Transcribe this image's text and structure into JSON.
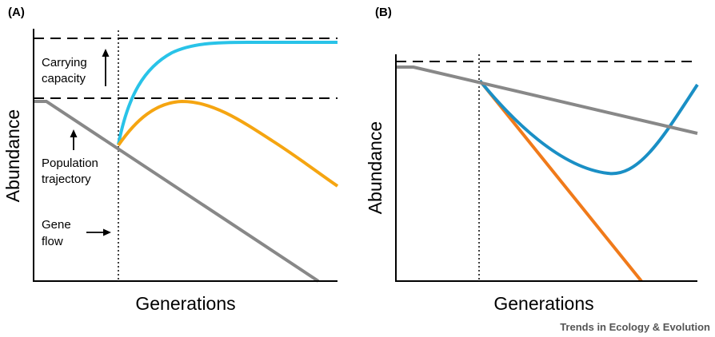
{
  "panels": [
    {
      "label": "(A)",
      "xlabel": "Generations",
      "ylabel": "Abundance",
      "annotations": {
        "carrying_capacity": [
          "Carrying",
          "capacity"
        ],
        "population_trajectory": [
          "Population",
          "trajectory"
        ],
        "gene_flow": [
          "Gene",
          "flow"
        ]
      }
    },
    {
      "label": "(B)",
      "xlabel": "Generations",
      "ylabel": "Abundance"
    }
  ],
  "credit": "Trends in Ecology & Evolution",
  "colors": {
    "baseline": "#888888",
    "rescue_high": "#29c3e8",
    "rescue_transient": "#f5a511",
    "rescue_delayed": "#1a8fc5",
    "no_rescue": "#f07a1a",
    "axis": "#000000"
  }
}
